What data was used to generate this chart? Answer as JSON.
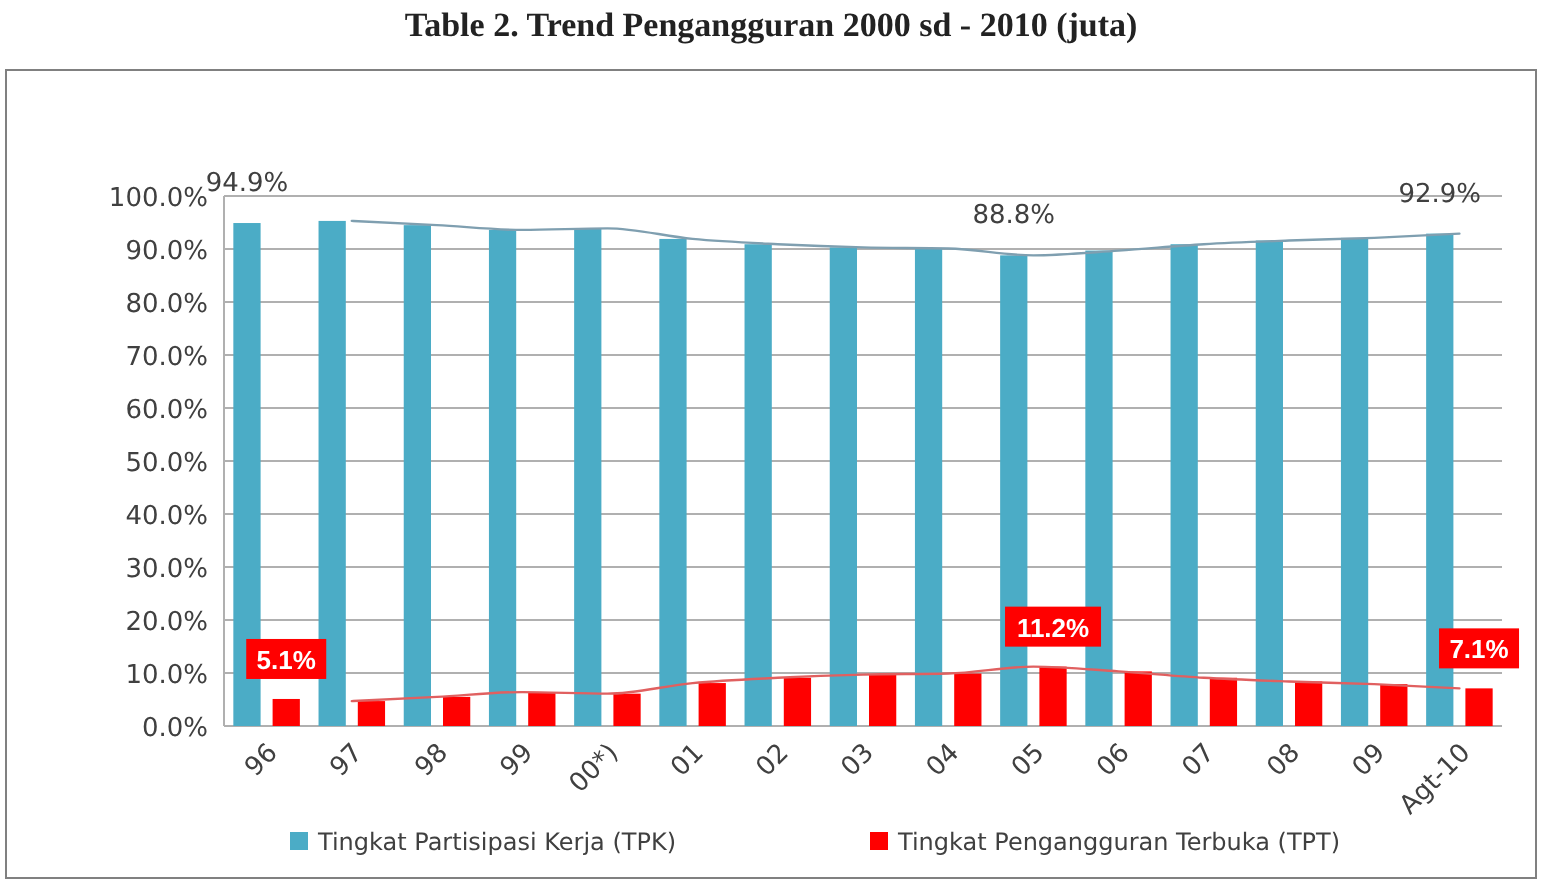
{
  "chart_data": {
    "type": "bar",
    "title": "Table 2. Trend Pengangguran 2000 sd - 2010 (juta)",
    "categories": [
      "96",
      "97",
      "98",
      "99",
      "00*)",
      "01",
      "02",
      "03",
      "04",
      "05",
      "06",
      "07",
      "08",
      "09",
      "Agt-10"
    ],
    "series": [
      {
        "name": "Tingkat Partisipasi Kerja (TPK)",
        "color": "#4bacc6",
        "values": [
          94.9,
          95.3,
          94.5,
          93.6,
          93.9,
          91.9,
          90.9,
          90.3,
          90.1,
          88.8,
          89.7,
          90.9,
          91.6,
          92.1,
          92.9
        ],
        "value_labels": [
          "94.9%",
          null,
          null,
          null,
          null,
          null,
          null,
          null,
          null,
          "88.8%",
          null,
          null,
          null,
          null,
          "92.9%"
        ]
      },
      {
        "name": "Tingkat Pengangguran Terbuka (TPT)",
        "color": "#ff0000",
        "values": [
          5.1,
          4.7,
          5.5,
          6.4,
          6.1,
          8.1,
          9.1,
          9.7,
          9.9,
          11.2,
          10.3,
          9.1,
          8.4,
          7.9,
          7.1
        ],
        "value_labels": [
          "5.1%",
          null,
          null,
          null,
          null,
          null,
          null,
          null,
          null,
          "11.2%",
          null,
          null,
          null,
          null,
          "7.1%"
        ]
      },
      {
        "type": "line",
        "color": "#7f9fb0",
        "values": [
          null,
          95.3,
          94.5,
          93.6,
          93.9,
          91.9,
          90.9,
          90.3,
          90.1,
          88.8,
          89.7,
          90.9,
          91.6,
          92.1,
          92.9
        ]
      },
      {
        "type": "line",
        "color": "#e06060",
        "values": [
          null,
          4.7,
          5.5,
          6.4,
          6.1,
          8.1,
          9.1,
          9.7,
          9.9,
          11.2,
          10.3,
          9.1,
          8.4,
          7.9,
          7.1
        ]
      }
    ],
    "ylim": [
      0,
      100
    ],
    "yticks": [
      {
        "value": 0,
        "label": "0.0%"
      },
      {
        "value": 10,
        "label": "10.0%"
      },
      {
        "value": 20,
        "label": "20.0%"
      },
      {
        "value": 30,
        "label": "30.0%"
      },
      {
        "value": 40,
        "label": "40.0%"
      },
      {
        "value": 50,
        "label": "50.0%"
      },
      {
        "value": 60,
        "label": "60.0%"
      },
      {
        "value": 70,
        "label": "70.0%"
      },
      {
        "value": 80,
        "label": "80.0%"
      },
      {
        "value": 90,
        "label": "90.0%"
      },
      {
        "value": 100,
        "label": "100.0%"
      }
    ],
    "grid": "y",
    "legend": "bottom"
  }
}
